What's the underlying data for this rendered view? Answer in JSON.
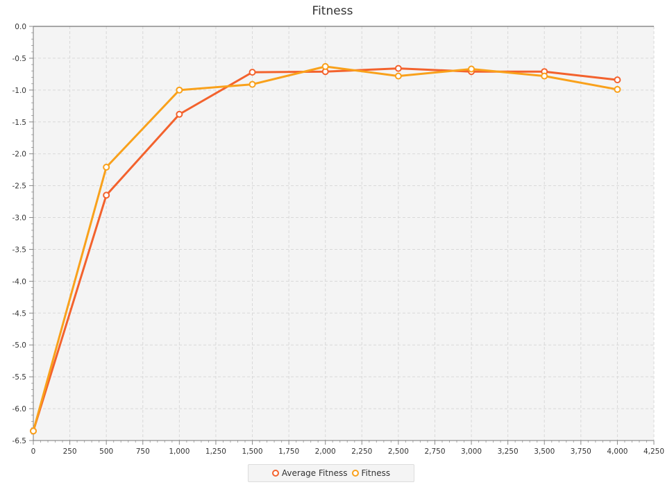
{
  "chart_data": {
    "type": "line",
    "title": "Fitness",
    "xlabel": "",
    "ylabel": "",
    "xlim": [
      0,
      4250
    ],
    "ylim": [
      -6.5,
      0.0
    ],
    "x_ticks": [
      "0",
      "250",
      "500",
      "750",
      "1,000",
      "1,250",
      "1,500",
      "1,750",
      "2,000",
      "2,250",
      "2,500",
      "2,750",
      "3,000",
      "3,250",
      "3,500",
      "3,750",
      "4,000",
      "4,250"
    ],
    "y_ticks": [
      "0.0",
      "-0.5",
      "-1.0",
      "-1.5",
      "-2.0",
      "-2.5",
      "-3.0",
      "-3.5",
      "-4.0",
      "-4.5",
      "-5.0",
      "-5.5",
      "-6.0",
      "-6.5"
    ],
    "grid": true,
    "legend_position": "bottom",
    "series": [
      {
        "name": "Average Fitness",
        "color": "#f3622d",
        "x": [
          0,
          500,
          1000,
          1500,
          2000,
          2500,
          3000,
          3500,
          4000
        ],
        "y": [
          -6.35,
          -2.65,
          -1.38,
          -0.72,
          -0.71,
          -0.66,
          -0.71,
          -0.71,
          -0.84
        ]
      },
      {
        "name": "Fitness",
        "color": "#f9a11b",
        "x": [
          0,
          500,
          1000,
          1500,
          2000,
          2500,
          3000,
          3500,
          4000
        ],
        "y": [
          -6.35,
          -2.21,
          -1.0,
          -0.91,
          -0.63,
          -0.78,
          -0.67,
          -0.78,
          -0.99
        ]
      }
    ]
  }
}
